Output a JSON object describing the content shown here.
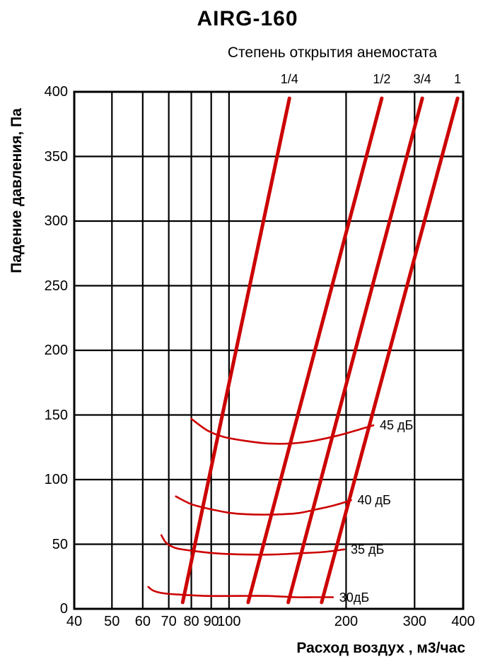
{
  "chart_data": {
    "type": "line",
    "title": "AIRG-160",
    "subtitle": "Степень открытия анемостата",
    "xlabel": "Расход воздух , м3/час",
    "ylabel": "Падение давления, Па",
    "x_scale": "log",
    "xlim": [
      40,
      400
    ],
    "ylim": [
      0,
      400
    ],
    "x_ticks": [
      40,
      50,
      60,
      70,
      80,
      90,
      100,
      200,
      300,
      400
    ],
    "y_ticks": [
      0,
      50,
      100,
      150,
      200,
      250,
      300,
      350,
      400
    ],
    "grid": true,
    "legend_position": "none",
    "series_color": "#cc0000",
    "grid_color": "#000000",
    "opening_series": [
      {
        "label": "1/4",
        "points": [
          [
            76,
            5
          ],
          [
            143,
            395
          ]
        ]
      },
      {
        "label": "1/2",
        "points": [
          [
            112,
            5
          ],
          [
            247,
            395
          ]
        ]
      },
      {
        "label": "3/4",
        "points": [
          [
            142,
            5
          ],
          [
            314,
            395
          ]
        ]
      },
      {
        "label": "1",
        "points": [
          [
            173,
            5
          ],
          [
            387,
            395
          ]
        ]
      }
    ],
    "noise_series": [
      {
        "label": "45 дБ",
        "points": [
          [
            80,
            147
          ],
          [
            88,
            138
          ],
          [
            97,
            133
          ],
          [
            110,
            130
          ],
          [
            125,
            128
          ],
          [
            145,
            128
          ],
          [
            165,
            130
          ],
          [
            190,
            134
          ],
          [
            212,
            138
          ],
          [
            235,
            142
          ]
        ]
      },
      {
        "label": "40 дБ",
        "points": [
          [
            73,
            87
          ],
          [
            80,
            81
          ],
          [
            90,
            77
          ],
          [
            102,
            74
          ],
          [
            115,
            73
          ],
          [
            132,
            73
          ],
          [
            150,
            74
          ],
          [
            168,
            77
          ],
          [
            186,
            80
          ],
          [
            206,
            84
          ]
        ]
      },
      {
        "label": "35 дБ",
        "points": [
          [
            67,
            57
          ],
          [
            69,
            51
          ],
          [
            73,
            47
          ],
          [
            80,
            45
          ],
          [
            92,
            43
          ],
          [
            110,
            42
          ],
          [
            130,
            42
          ],
          [
            152,
            43
          ],
          [
            175,
            44
          ],
          [
            198,
            46
          ]
        ]
      },
      {
        "label": "30дБ",
        "points": [
          [
            62,
            17
          ],
          [
            64,
            14
          ],
          [
            68,
            12
          ],
          [
            75,
            11
          ],
          [
            88,
            10
          ],
          [
            105,
            10
          ],
          [
            125,
            10
          ],
          [
            148,
            9
          ],
          [
            166,
            9
          ],
          [
            185,
            9
          ]
        ]
      }
    ]
  }
}
